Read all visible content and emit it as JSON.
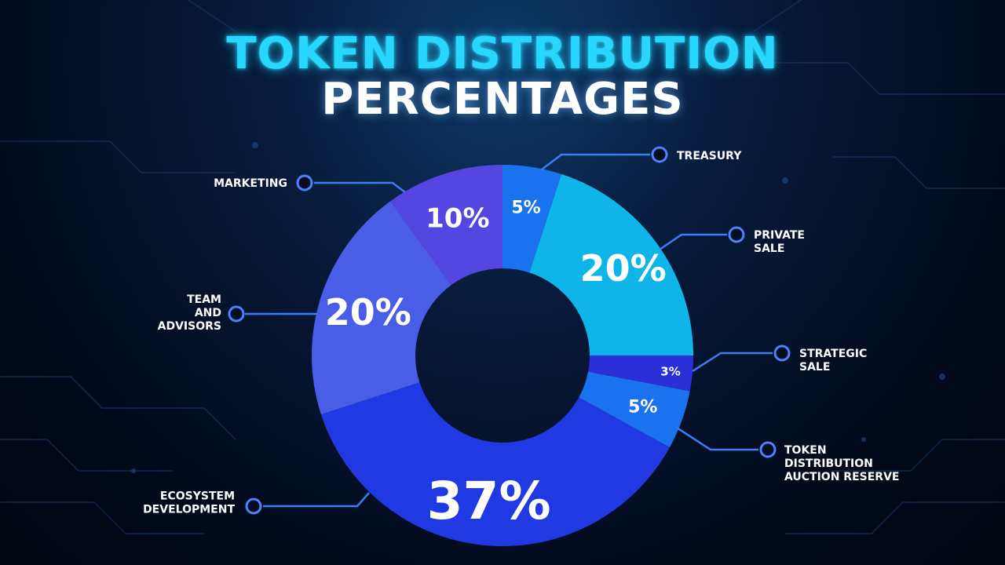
{
  "header": {
    "title_line1": "TOKEN DISTRIBUTION",
    "title_line2": "PERCENTAGES"
  },
  "chart_data": {
    "type": "pie",
    "categories": [
      "TREASURY",
      "PRIVATE SALE",
      "STRATEGIC SALE",
      "TOKEN DISTRIBUTION AUCTION RESERVE",
      "ECOSYSTEM DEVELOPMENT",
      "TEAM AND ADVISORS",
      "MARKETING"
    ],
    "values": [
      5,
      20,
      3,
      5,
      37,
      20,
      10
    ],
    "value_labels": [
      "5%",
      "20%",
      "3%",
      "5%",
      "37%",
      "20%",
      "10%"
    ],
    "label_lines": [
      [
        "TREASURY"
      ],
      [
        "PRIVATE",
        "SALE"
      ],
      [
        "STRATEGIC",
        "SALE"
      ],
      [
        "TOKEN",
        "DISTRIBUTION",
        "AUCTION RESERVE"
      ],
      [
        "ECOSYSTEM",
        "DEVELOPMENT"
      ],
      [
        "TEAM",
        "AND",
        "ADVISORS"
      ],
      [
        "MARKETING"
      ]
    ],
    "colors": [
      "#1a72ee",
      "#0fb4e8",
      "#2a2fd8",
      "#1a72ee",
      "#2139e3",
      "#4a5de6",
      "#5446e0"
    ],
    "donut": true,
    "legend": "callout labels around the ring"
  }
}
